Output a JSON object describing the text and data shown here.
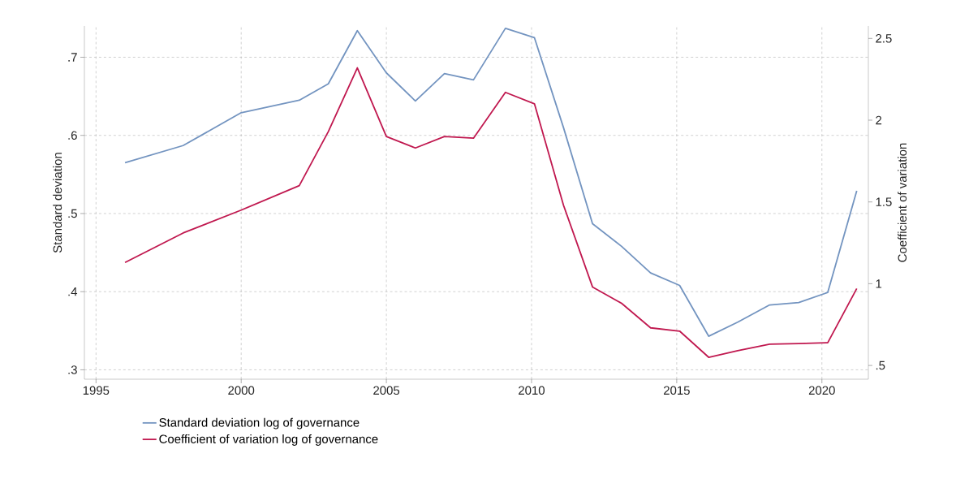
{
  "chart_data": {
    "type": "line",
    "ylabel": "Standard deviation",
    "y2label": "Coefficient of variation",
    "xlim": [
      1994.6,
      2021.6
    ],
    "xticks": [
      1995,
      2000,
      2005,
      2010,
      2015,
      2020
    ],
    "ylim": [
      0.288,
      0.74
    ],
    "yticks": [
      {
        "value": 0.3,
        "label": ".3"
      },
      {
        "value": 0.4,
        "label": ".4"
      },
      {
        "value": 0.5,
        "label": ".5"
      },
      {
        "value": 0.6,
        "label": ".6"
      },
      {
        "value": 0.7,
        "label": ".7"
      }
    ],
    "y2lim": [
      0.416,
      2.576
    ],
    "y2ticks": [
      {
        "value": 0.5,
        "label": ".5"
      },
      1,
      1.5,
      2,
      2.5
    ],
    "grid": true,
    "legend": "bottom",
    "series": [
      {
        "name": "Standard deviation log of governance",
        "color": "#7394c0",
        "x": [
          1996,
          1998,
          2000,
          2002,
          2003,
          2004,
          2005,
          2006,
          2007,
          2008,
          2009.1,
          2010.1,
          2011.1,
          2012.1,
          2013.1,
          2014.1,
          2015.1,
          2016.1,
          2017.1,
          2018.2,
          2019.2,
          2020.2,
          2021.2
        ],
        "values": [
          0.565,
          0.587,
          0.629,
          0.645,
          0.666,
          0.734,
          0.68,
          0.644,
          0.679,
          0.671,
          0.737,
          0.725,
          0.61,
          0.487,
          0.458,
          0.424,
          0.408,
          0.343,
          0.361,
          0.383,
          0.386,
          0.399,
          0.529
        ]
      },
      {
        "name": "Coefficient of variation log of governance",
        "color": "#c0184f",
        "axis": "y2",
        "x": [
          1996,
          1998,
          2000,
          2002,
          2003,
          2004,
          2005,
          2006,
          2007,
          2008,
          2009.1,
          2010.1,
          2011.1,
          2012.1,
          2013.1,
          2014.1,
          2015.1,
          2016.1,
          2017.1,
          2018.2,
          2019.2,
          2020.2,
          2021.2
        ],
        "values": [
          1.13,
          1.31,
          1.45,
          1.6,
          1.93,
          2.32,
          1.9,
          1.83,
          1.9,
          1.89,
          2.17,
          2.1,
          1.48,
          0.98,
          0.88,
          0.73,
          0.71,
          0.55,
          0.59,
          0.63,
          0.634,
          0.639,
          0.97
        ]
      }
    ]
  }
}
